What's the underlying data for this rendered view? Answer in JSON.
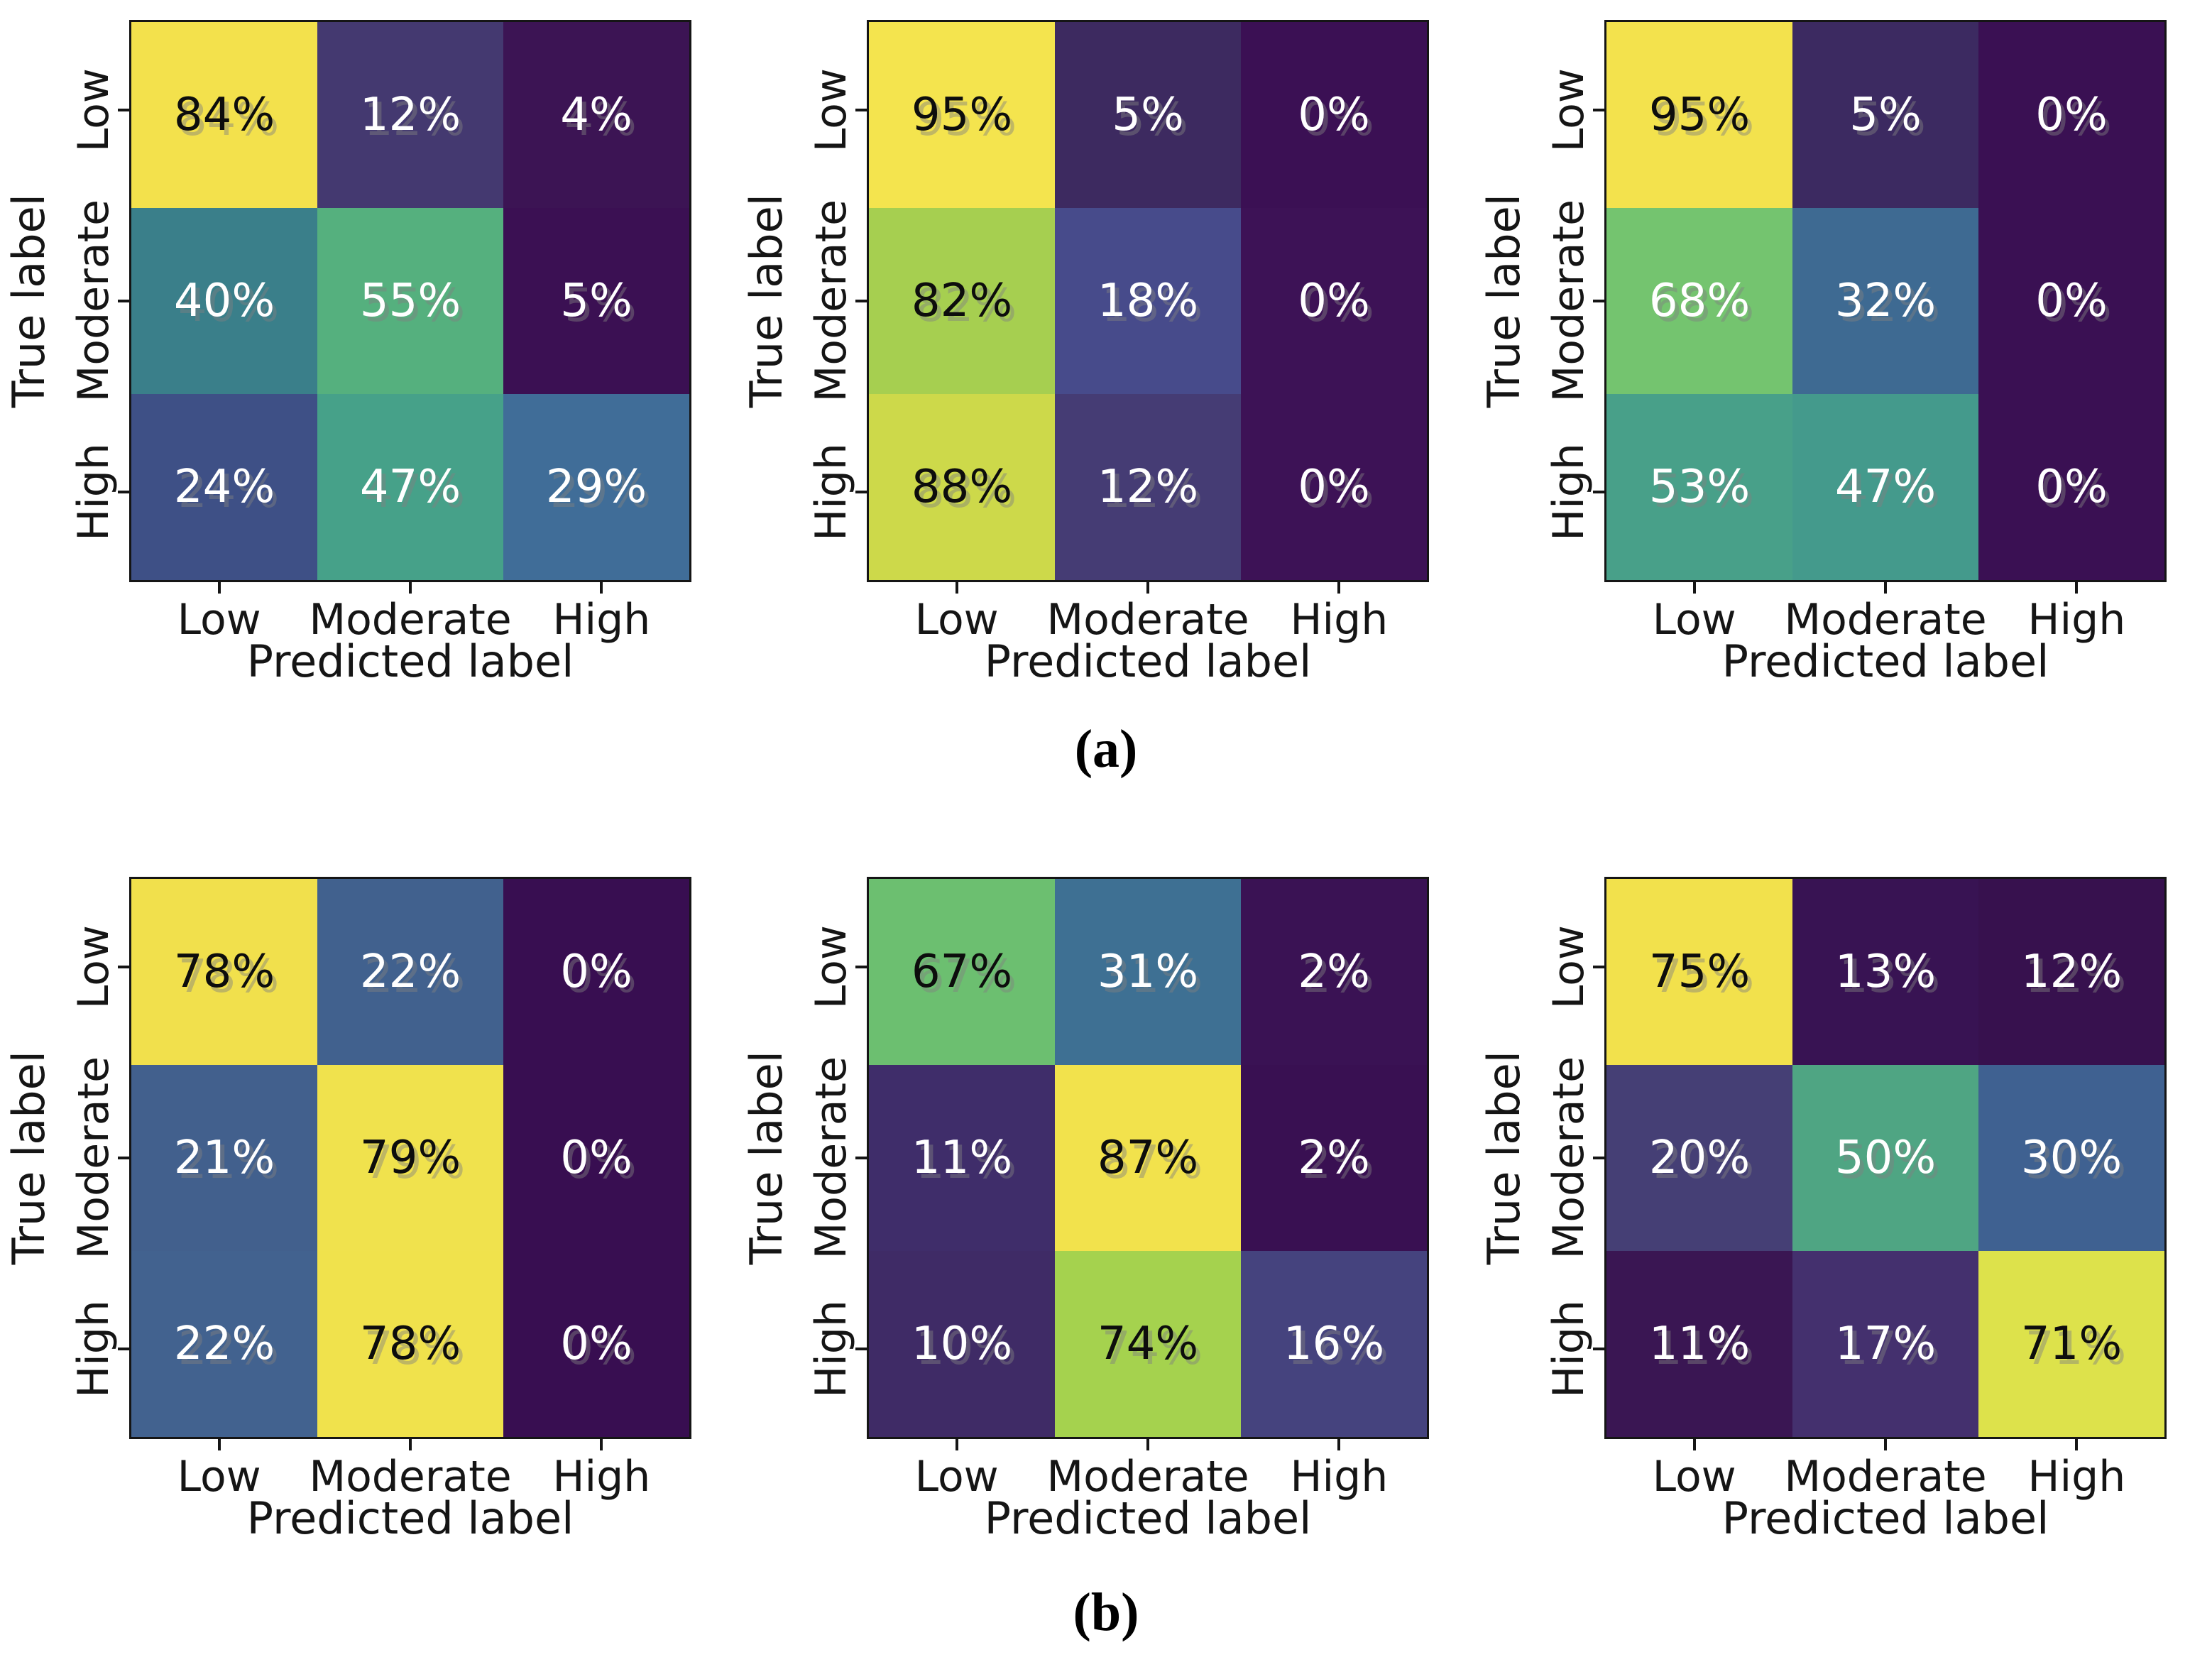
{
  "figure": {
    "ylabel": "True label",
    "xlabel": "Predicted label",
    "row_labels": [
      "Low",
      "Moderate",
      "High"
    ],
    "col_labels": [
      "Low",
      "Moderate",
      "High"
    ],
    "axis_color": "#151515",
    "background": "#ffffff"
  },
  "panel_labels": [
    "(a)",
    "(b)"
  ],
  "chart_data": [
    {
      "type": "heatmap",
      "panel": "(a)",
      "position": "top-left",
      "ylabel": "True label",
      "xlabel": "Predicted label",
      "y_categories": [
        "Low",
        "Moderate",
        "High"
      ],
      "x_categories": [
        "Low",
        "Moderate",
        "High"
      ],
      "values_percent": [
        [
          84,
          12,
          4
        ],
        [
          40,
          55,
          5
        ],
        [
          24,
          47,
          29
        ]
      ],
      "cell_labels": [
        [
          "84%",
          "12%",
          "4%"
        ],
        [
          "40%",
          "55%",
          "5%"
        ],
        [
          "24%",
          "47%",
          "29%"
        ]
      ],
      "cell_colors": [
        [
          "#f3e14c",
          "#443970",
          "#3c1454"
        ],
        [
          "#3a7f8a",
          "#55b07e",
          "#3b1053"
        ],
        [
          "#3e5086",
          "#46a189",
          "#406d98"
        ]
      ],
      "text_colors": [
        [
          "#0d0d0d",
          "#ffffff",
          "#ffffff"
        ],
        [
          "#ffffff",
          "#ffffff",
          "#ffffff"
        ],
        [
          "#ffffff",
          "#ffffff",
          "#ffffff"
        ]
      ],
      "colormap": "viridis"
    },
    {
      "type": "heatmap",
      "panel": "(a)",
      "position": "top-middle",
      "ylabel": "True label",
      "xlabel": "Predicted label",
      "y_categories": [
        "Low",
        "Moderate",
        "High"
      ],
      "x_categories": [
        "Low",
        "Moderate",
        "High"
      ],
      "values_percent": [
        [
          95,
          5,
          0
        ],
        [
          82,
          18,
          0
        ],
        [
          88,
          12,
          0
        ]
      ],
      "cell_labels": [
        [
          "95%",
          "5%",
          "0%"
        ],
        [
          "82%",
          "18%",
          "0%"
        ],
        [
          "88%",
          "12%",
          "0%"
        ]
      ],
      "cell_colors": [
        [
          "#f4e44e",
          "#3d2a60",
          "#3b1054"
        ],
        [
          "#a6cf50",
          "#474b8b",
          "#3d1256"
        ],
        [
          "#cdd94a",
          "#453c74",
          "#3d1256"
        ]
      ],
      "text_colors": [
        [
          "#0d0d0d",
          "#ffffff",
          "#ffffff"
        ],
        [
          "#0d0d0d",
          "#ffffff",
          "#ffffff"
        ],
        [
          "#0d0d0d",
          "#ffffff",
          "#ffffff"
        ]
      ],
      "colormap": "viridis"
    },
    {
      "type": "heatmap",
      "panel": "(a)",
      "position": "top-right",
      "ylabel": "True label",
      "xlabel": "Predicted label",
      "y_categories": [
        "Low",
        "Moderate",
        "High"
      ],
      "x_categories": [
        "Low",
        "Moderate",
        "High"
      ],
      "values_percent": [
        [
          95,
          5,
          0
        ],
        [
          68,
          32,
          0
        ],
        [
          53,
          47,
          0
        ]
      ],
      "cell_labels": [
        [
          "95%",
          "5%",
          "0%"
        ],
        [
          "68%",
          "32%",
          "0%"
        ],
        [
          "53%",
          "47%",
          "0%"
        ]
      ],
      "cell_colors": [
        [
          "#f3e24d",
          "#3c2a61",
          "#3a1053"
        ],
        [
          "#74c46f",
          "#3e6a92",
          "#3a1053"
        ],
        [
          "#48a089",
          "#449a8c",
          "#3a1053"
        ]
      ],
      "text_colors": [
        [
          "#0d0d0d",
          "#ffffff",
          "#ffffff"
        ],
        [
          "#ffffff",
          "#ffffff",
          "#ffffff"
        ],
        [
          "#ffffff",
          "#ffffff",
          "#ffffff"
        ]
      ],
      "colormap": "viridis"
    },
    {
      "type": "heatmap",
      "panel": "(b)",
      "position": "bottom-left",
      "ylabel": "True label",
      "xlabel": "Predicted label",
      "y_categories": [
        "Low",
        "Moderate",
        "High"
      ],
      "x_categories": [
        "Low",
        "Moderate",
        "High"
      ],
      "values_percent": [
        [
          78,
          22,
          0
        ],
        [
          21,
          79,
          0
        ],
        [
          22,
          78,
          0
        ]
      ],
      "cell_labels": [
        [
          "78%",
          "22%",
          "0%"
        ],
        [
          "21%",
          "79%",
          "0%"
        ],
        [
          "22%",
          "78%",
          "0%"
        ]
      ],
      "cell_colors": [
        [
          "#f1e04c",
          "#41618e",
          "#380e51"
        ],
        [
          "#42608d",
          "#f0e24d",
          "#380e51"
        ],
        [
          "#42628f",
          "#f0e24c",
          "#380e51"
        ]
      ],
      "text_colors": [
        [
          "#0d0d0d",
          "#ffffff",
          "#ffffff"
        ],
        [
          "#ffffff",
          "#0d0d0d",
          "#ffffff"
        ],
        [
          "#ffffff",
          "#0d0d0d",
          "#ffffff"
        ]
      ],
      "colormap": "viridis"
    },
    {
      "type": "heatmap",
      "panel": "(b)",
      "position": "bottom-middle",
      "ylabel": "True label",
      "xlabel": "Predicted label",
      "y_categories": [
        "Low",
        "Moderate",
        "High"
      ],
      "x_categories": [
        "Low",
        "Moderate",
        "High"
      ],
      "values_percent": [
        [
          67,
          31,
          2
        ],
        [
          11,
          87,
          2
        ],
        [
          10,
          74,
          16
        ]
      ],
      "cell_labels": [
        [
          "67%",
          "31%",
          "2%"
        ],
        [
          "11%",
          "87%",
          "2%"
        ],
        [
          "10%",
          "74%",
          "16%"
        ]
      ],
      "cell_colors": [
        [
          "#6cbf70",
          "#3e7093",
          "#3a1254"
        ],
        [
          "#3f2d6a",
          "#f2e24c",
          "#391052"
        ],
        [
          "#3f2b66",
          "#a5d24e",
          "#45437e"
        ]
      ],
      "text_colors": [
        [
          "#0d0d0d",
          "#ffffff",
          "#ffffff"
        ],
        [
          "#ffffff",
          "#0d0d0d",
          "#ffffff"
        ],
        [
          "#ffffff",
          "#0d0d0d",
          "#ffffff"
        ]
      ],
      "colormap": "viridis"
    },
    {
      "type": "heatmap",
      "panel": "(b)",
      "position": "bottom-right",
      "ylabel": "True label",
      "xlabel": "Predicted label",
      "y_categories": [
        "Low",
        "Moderate",
        "High"
      ],
      "x_categories": [
        "Low",
        "Moderate",
        "High"
      ],
      "values_percent": [
        [
          75,
          13,
          12
        ],
        [
          20,
          50,
          30
        ],
        [
          11,
          17,
          71
        ]
      ],
      "cell_labels": [
        [
          "75%",
          "13%",
          "12%"
        ],
        [
          "20%",
          "50%",
          "30%"
        ],
        [
          "11%",
          "17%",
          "71%"
        ]
      ],
      "cell_colors": [
        [
          "#f2e14c",
          "#381353",
          "#37114e"
        ],
        [
          "#453f75",
          "#4fa583",
          "#3f6191"
        ],
        [
          "#3a1653",
          "#44306e",
          "#dde24b"
        ]
      ],
      "text_colors": [
        [
          "#0d0d0d",
          "#ffffff",
          "#ffffff"
        ],
        [
          "#ffffff",
          "#ffffff",
          "#ffffff"
        ],
        [
          "#ffffff",
          "#ffffff",
          "#0d0d0d"
        ]
      ],
      "colormap": "viridis"
    }
  ]
}
